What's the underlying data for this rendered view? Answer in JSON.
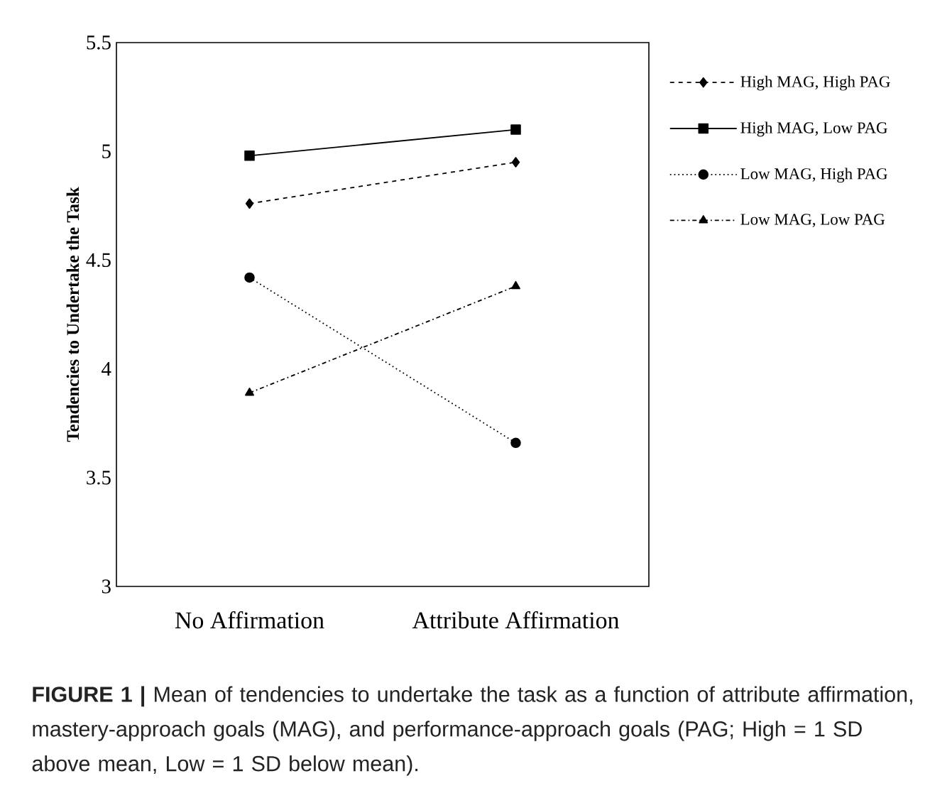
{
  "chart_data": {
    "type": "line",
    "categories": [
      "No Affirmation",
      "Attribute Affirmation"
    ],
    "ylabel": "Tendencies to Undertake the Task",
    "ylim": [
      3,
      5.5
    ],
    "yticks": [
      3,
      3.5,
      4,
      4.5,
      5,
      5.5
    ],
    "legend": "right",
    "series": [
      {
        "name": "High MAG, High PAG",
        "color": "#000000",
        "values": [
          4.76,
          4.95
        ],
        "marker": "diamond",
        "line_style": "dashed"
      },
      {
        "name": "High MAG, Low PAG",
        "color": "#000000",
        "values": [
          4.98,
          5.1
        ],
        "marker": "square",
        "line_style": "solid"
      },
      {
        "name": "Low MAG, High PAG",
        "color": "#000000",
        "values": [
          4.42,
          3.66
        ],
        "marker": "circle",
        "line_style": "dotted"
      },
      {
        "name": "Low MAG, Low PAG",
        "color": "#000000",
        "values": [
          3.89,
          4.38
        ],
        "marker": "triangle",
        "line_style": "dashdot"
      }
    ],
    "annotations": [
      "**FIGURE 1 |** Mean of tendencies to undertake the task as a function of attribute affirmation, mastery-approach goals (MAG), and performance-approach goals (PAG; High = 1 SD above mean, Low = 1 SD below mean)."
    ]
  }
}
